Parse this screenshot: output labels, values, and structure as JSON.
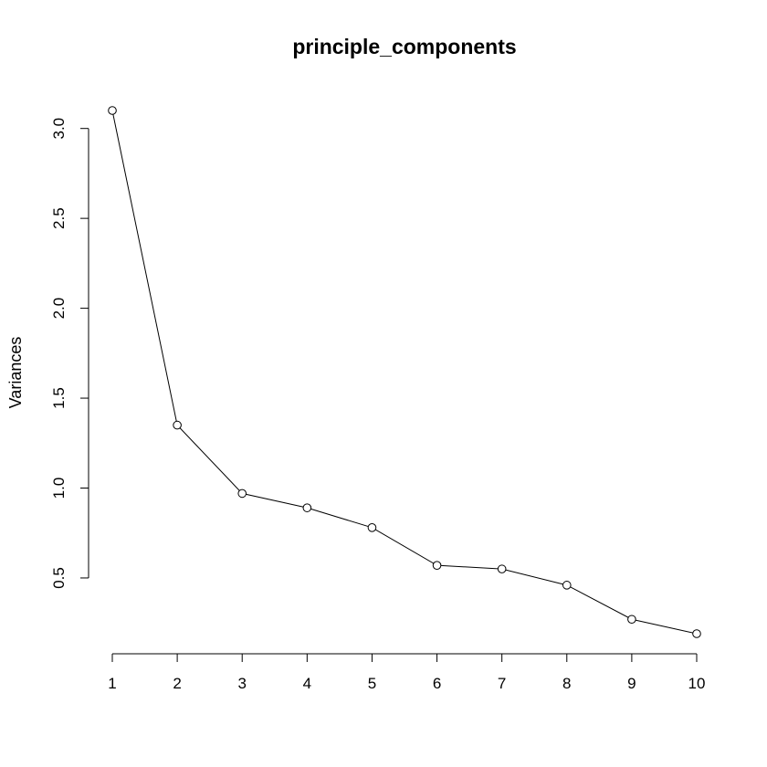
{
  "chart_data": {
    "type": "line",
    "title": "principle_components",
    "xlabel": "",
    "ylabel": "Variances",
    "x": [
      1,
      2,
      3,
      4,
      5,
      6,
      7,
      8,
      9,
      10
    ],
    "values": [
      3.1,
      1.35,
      0.97,
      0.89,
      0.78,
      0.57,
      0.55,
      0.46,
      0.27,
      0.19
    ],
    "x_ticks": [
      "1",
      "2",
      "3",
      "4",
      "5",
      "6",
      "7",
      "8",
      "9",
      "10"
    ],
    "y_ticks": [
      "0.5",
      "1.0",
      "1.5",
      "2.0",
      "2.5",
      "3.0"
    ],
    "ylim": [
      0.19,
      3.1
    ],
    "grid": false,
    "legend": "none",
    "marker": "open-circle",
    "line_color": "#000000"
  }
}
